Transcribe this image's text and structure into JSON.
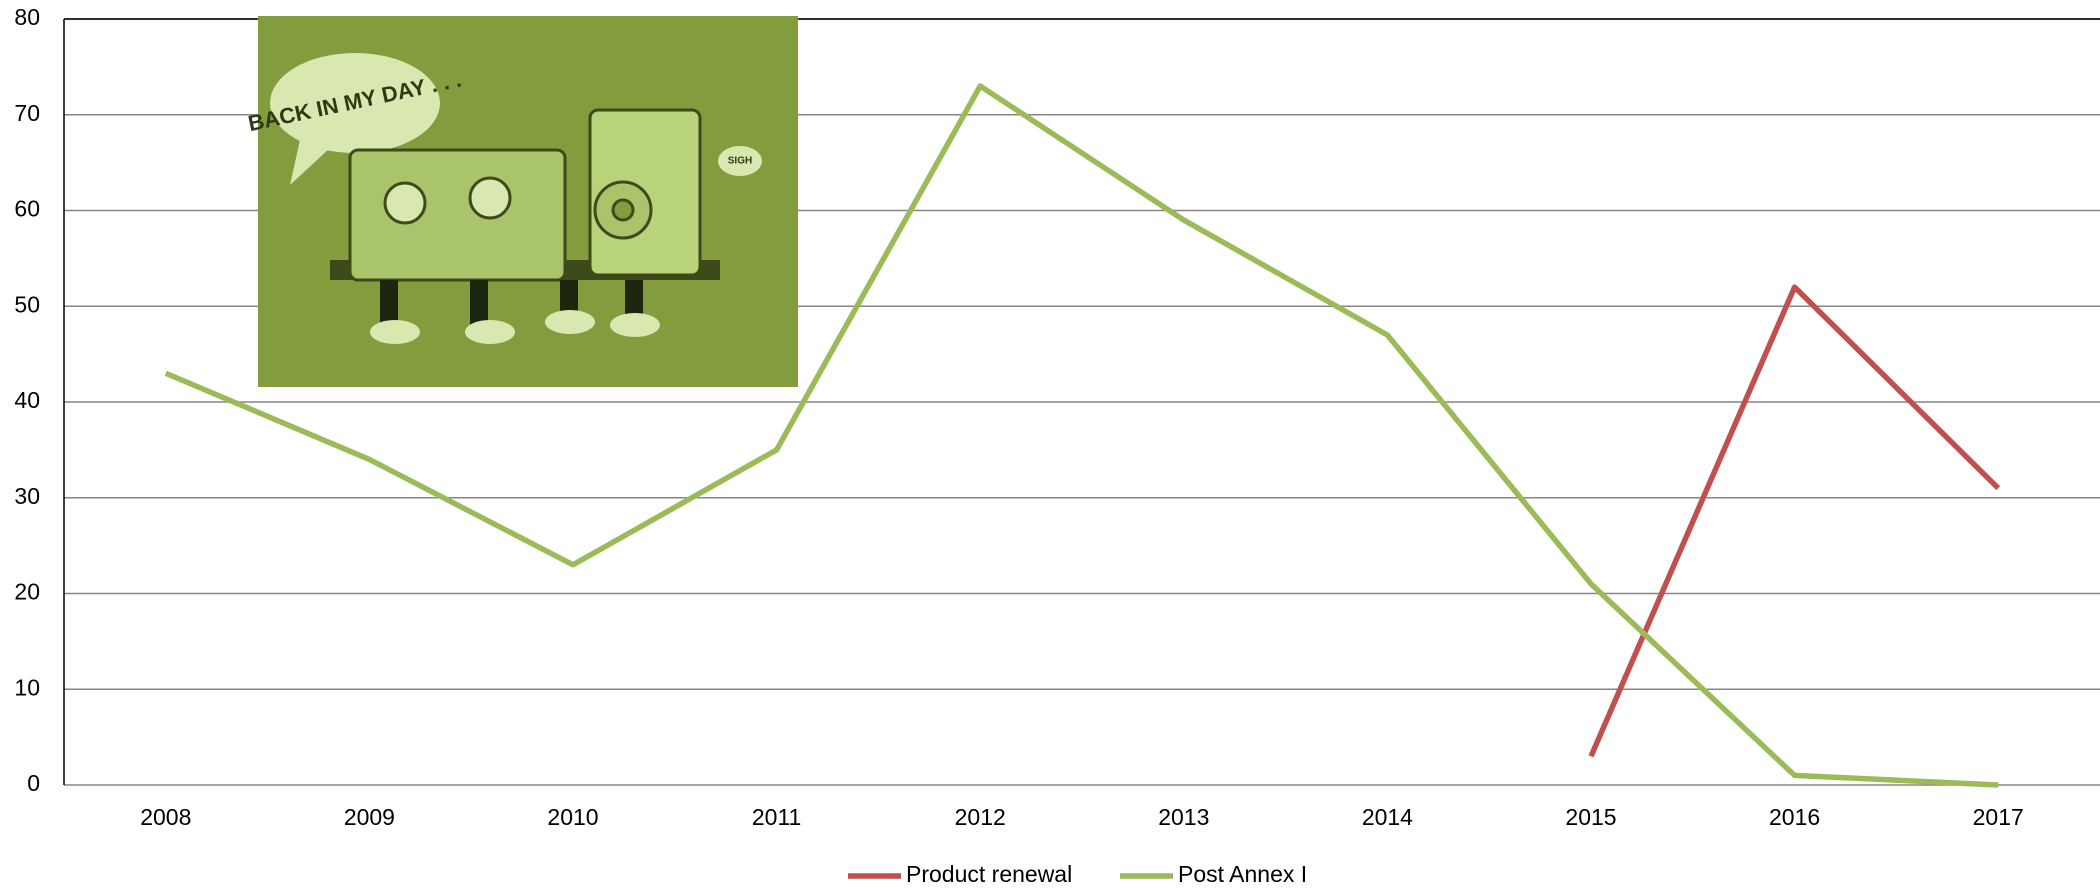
{
  "chart_data": {
    "type": "line",
    "categories": [
      "2008",
      "2009",
      "2010",
      "2011",
      "2012",
      "2013",
      "2014",
      "2015",
      "2016",
      "2017"
    ],
    "series": [
      {
        "name": "Product renewal",
        "color": "#c0504d",
        "values": [
          null,
          null,
          null,
          null,
          null,
          null,
          null,
          3,
          52,
          31
        ]
      },
      {
        "name": "Post Annex I",
        "color": "#9bbb59",
        "values": [
          43,
          34,
          23,
          35,
          73,
          59,
          47,
          21,
          1,
          0
        ]
      }
    ],
    "ylim": [
      0,
      80
    ],
    "yticks": [
      0,
      10,
      20,
      30,
      40,
      50,
      60,
      70,
      80
    ],
    "grid": true,
    "legend": "bottom",
    "annotations": [
      "BACK IN MY DAY . . .",
      "SIGH"
    ]
  }
}
